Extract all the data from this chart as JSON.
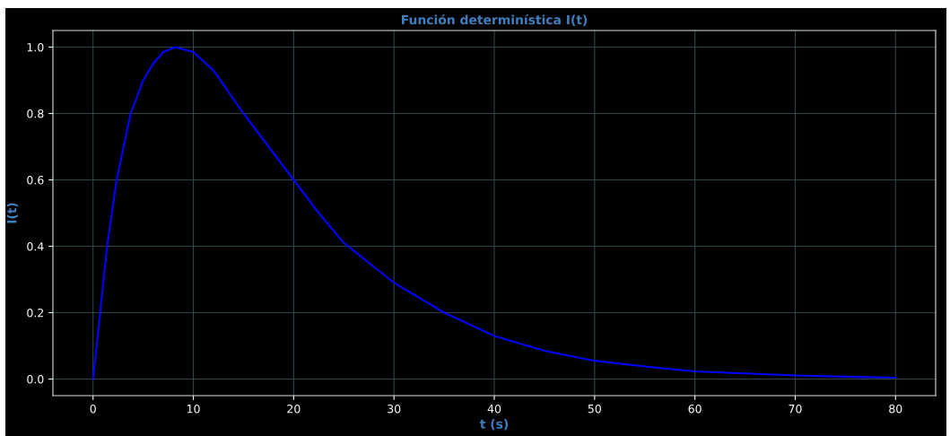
{
  "chart_data": {
    "type": "line",
    "title": "Función determinística I(t)",
    "xlabel": "t (s)",
    "ylabel": "I(t)",
    "x": [
      0,
      0.71,
      1.4,
      2.35,
      3.75,
      5,
      6,
      7,
      8.2,
      10,
      12,
      15,
      17.5,
      20,
      22.5,
      25,
      27.5,
      30,
      35,
      40,
      45,
      50,
      55,
      60,
      65,
      70,
      75,
      80
    ],
    "series": [
      {
        "color": "#0000ff",
        "values": [
          0,
          0.2,
          0.4,
          0.6,
          0.8,
          0.9,
          0.95,
          0.985,
          1.0,
          0.985,
          0.93,
          0.8,
          0.7,
          0.6,
          0.5,
          0.41,
          0.35,
          0.29,
          0.2,
          0.13,
          0.085,
          0.055,
          0.038,
          0.023,
          0.017,
          0.011,
          0.007,
          0.004
        ]
      }
    ],
    "xlim": [
      -4,
      84
    ],
    "ylim": [
      -0.05,
      1.05
    ],
    "xticks": [
      0,
      10,
      20,
      30,
      40,
      50,
      60,
      70,
      80
    ],
    "yticks": [
      {
        "value": 0,
        "label": "0.0"
      },
      {
        "value": 0.2,
        "label": "0.2"
      },
      {
        "value": 0.4,
        "label": "0.4"
      },
      {
        "value": 0.6,
        "label": "0.6"
      },
      {
        "value": 0.8,
        "label": "0.8"
      },
      {
        "value": 1.0,
        "label": "1.0"
      }
    ],
    "grid": true
  }
}
